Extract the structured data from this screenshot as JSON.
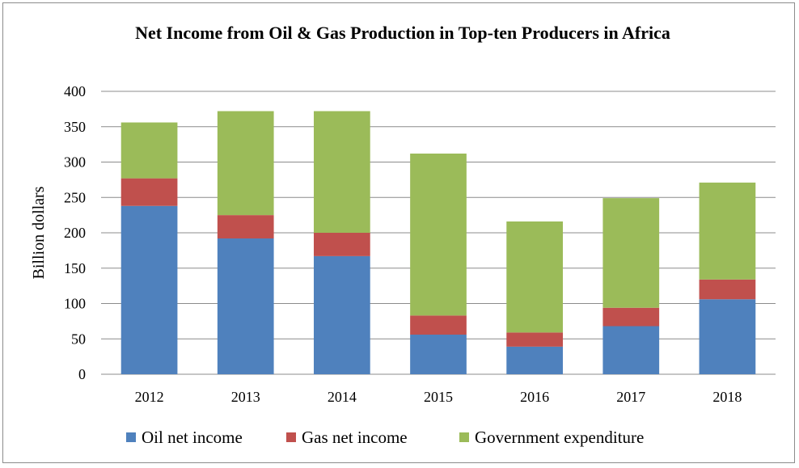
{
  "chart_data": {
    "type": "bar",
    "stacked": true,
    "title": "Net Income from Oil & Gas Production in Top-ten Producers in Africa",
    "xlabel": "",
    "ylabel": "Billion dollars",
    "ylim": [
      0,
      400
    ],
    "yticks": [
      0,
      50,
      100,
      150,
      200,
      250,
      300,
      350,
      400
    ],
    "grid": true,
    "legend_position": "bottom",
    "categories": [
      "2012",
      "2013",
      "2014",
      "2015",
      "2016",
      "2017",
      "2018"
    ],
    "series": [
      {
        "name": "Oil net income",
        "color": "#4f81bd",
        "values": [
          238,
          192,
          167,
          56,
          39,
          68,
          106
        ]
      },
      {
        "name": "Gas net income",
        "color": "#c0504d",
        "values": [
          39,
          33,
          33,
          27,
          20,
          26,
          28
        ]
      },
      {
        "name": "Government expenditure",
        "color": "#9bbb59",
        "values": [
          79,
          147,
          172,
          229,
          157,
          155,
          137
        ]
      }
    ]
  }
}
